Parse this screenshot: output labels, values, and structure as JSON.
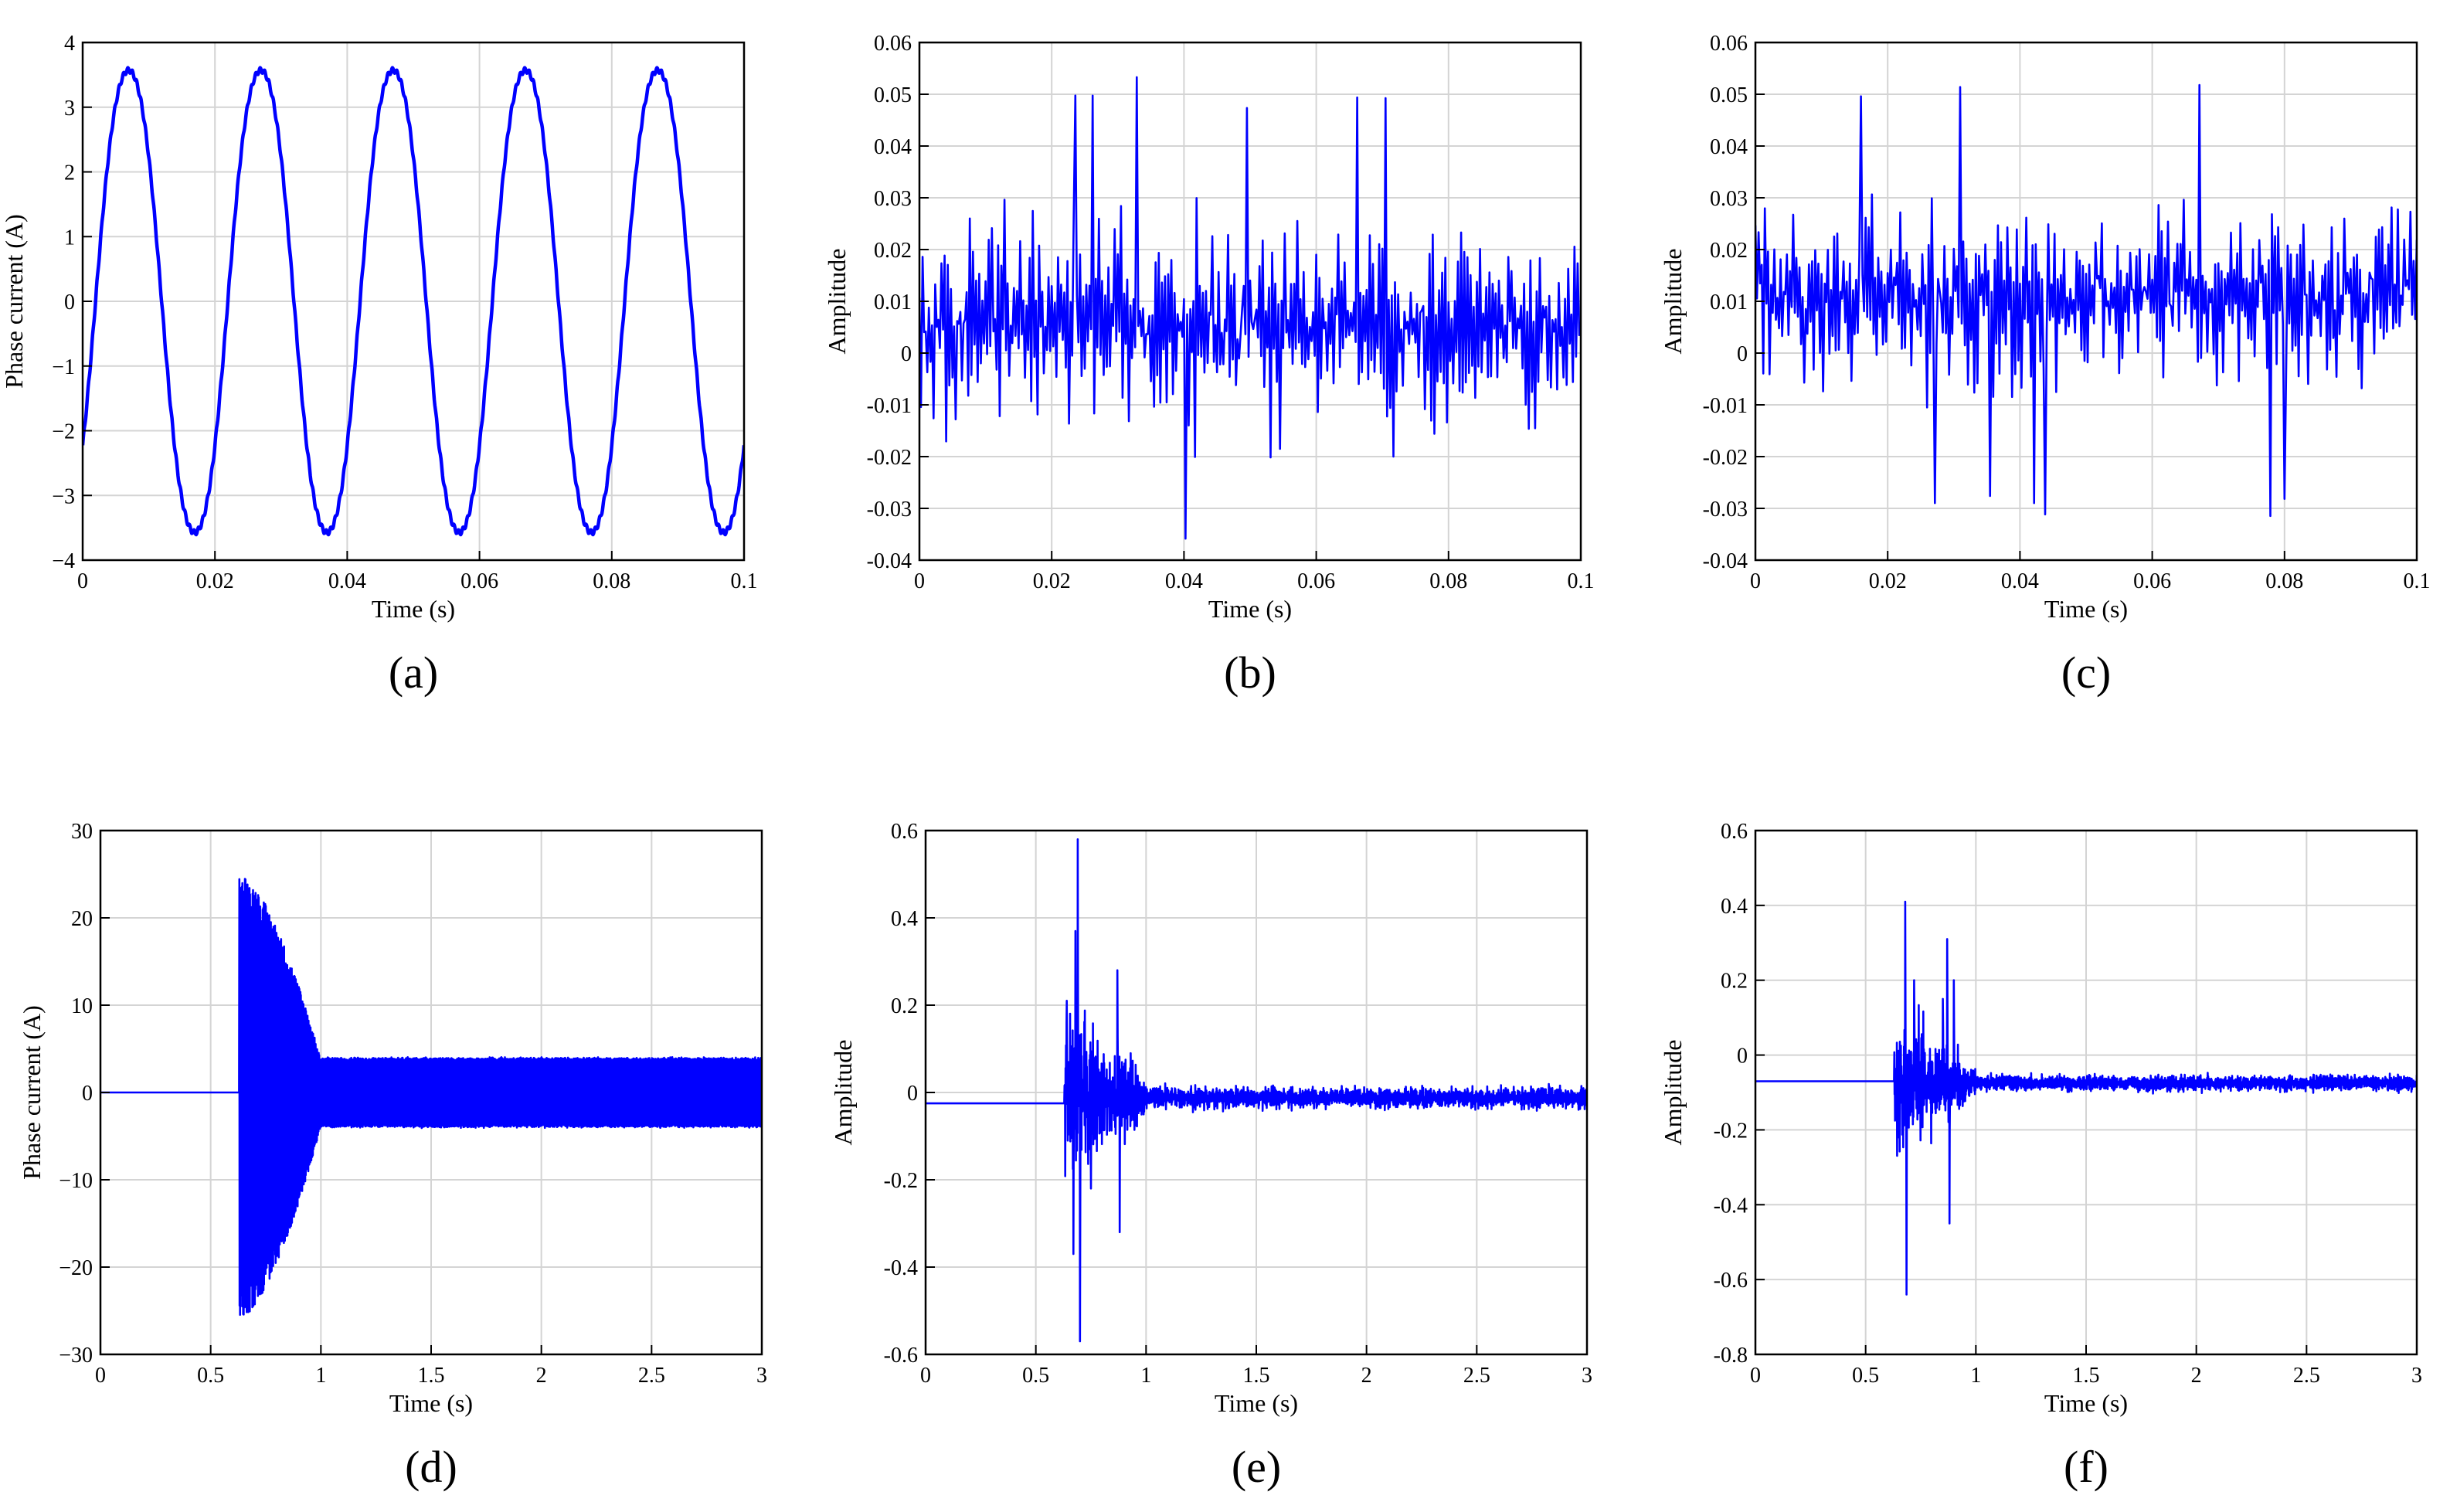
{
  "colors": {
    "line": "#0000ff",
    "grid": "#d4d4d4",
    "axis": "#000000"
  },
  "chart_data": [
    {
      "panel": "a",
      "caption": "(a)",
      "type": "line",
      "xlabel": "Time (s)",
      "ylabel": "Phase current (A)",
      "xlim": [
        0,
        0.1
      ],
      "ylim": [
        -4,
        4
      ],
      "xticks": [
        0,
        0.02,
        0.04,
        0.06,
        0.08,
        0.1
      ],
      "xtick_labels": [
        "0",
        "0.02",
        "0.04",
        "0.06",
        "0.08",
        "0.1"
      ],
      "yticks": [
        -4,
        -3,
        -2,
        -1,
        0,
        1,
        2,
        3,
        4
      ],
      "ytick_labels": [
        "−4",
        "−3",
        "−2",
        "−1",
        "0",
        "1",
        "2",
        "3",
        "4"
      ],
      "grid": true,
      "signal": {
        "kind": "sine",
        "amplitude": 3.8,
        "frequency_hz": 50,
        "phase_deg": -35,
        "harmonic": 0.12
      }
    },
    {
      "panel": "b",
      "caption": "(b)",
      "type": "line",
      "xlabel": "Time (s)",
      "ylabel": "Amplitude",
      "xlim": [
        0,
        0.1
      ],
      "ylim": [
        -0.04,
        0.06
      ],
      "xticks": [
        0,
        0.02,
        0.04,
        0.06,
        0.08,
        0.1
      ],
      "xtick_labels": [
        "0",
        "0.02",
        "0.04",
        "0.06",
        "0.08",
        "0.1"
      ],
      "yticks": [
        -0.04,
        -0.03,
        -0.02,
        -0.01,
        0,
        0.01,
        0.02,
        0.03,
        0.04,
        0.05,
        0.06
      ],
      "ytick_labels": [
        "-0.04",
        "-0.03",
        "-0.02",
        "-0.01",
        "0",
        "0.01",
        "0.02",
        "0.03",
        "0.04",
        "0.05",
        "0.06"
      ],
      "grid": true,
      "signal": {
        "kind": "noise",
        "points": 420,
        "mean": 0.005,
        "spread": 0.028,
        "min": -0.036,
        "max": 0.054
      }
    },
    {
      "panel": "c",
      "caption": "(c)",
      "type": "line",
      "xlabel": "Time (s)",
      "ylabel": "Amplitude",
      "xlim": [
        0,
        0.1
      ],
      "ylim": [
        -0.04,
        0.06
      ],
      "xticks": [
        0,
        0.02,
        0.04,
        0.06,
        0.08,
        0.1
      ],
      "xtick_labels": [
        "0",
        "0.02",
        "0.04",
        "0.06",
        "0.08",
        "0.1"
      ],
      "yticks": [
        -0.04,
        -0.03,
        -0.02,
        -0.01,
        0,
        0.01,
        0.02,
        0.03,
        0.04,
        0.05,
        0.06
      ],
      "ytick_labels": [
        "-0.04",
        "-0.03",
        "-0.02",
        "-0.01",
        "0",
        "0.01",
        "0.02",
        "0.03",
        "0.04",
        "0.05",
        "0.06"
      ],
      "grid": true,
      "signal": {
        "kind": "noise",
        "points": 420,
        "mean": 0.011,
        "spread": 0.024,
        "min": -0.032,
        "max": 0.057
      }
    },
    {
      "panel": "d",
      "caption": "(d)",
      "type": "line",
      "xlabel": "Time (s)",
      "ylabel": "Phase current (A)",
      "xlim": [
        0,
        3
      ],
      "ylim": [
        -30,
        30
      ],
      "xticks": [
        0,
        0.5,
        1,
        1.5,
        2,
        2.5,
        3
      ],
      "xtick_labels": [
        "0",
        "0.5",
        "1",
        "1.5",
        "2",
        "2.5",
        "3"
      ],
      "yticks": [
        -30,
        -20,
        -10,
        0,
        10,
        20,
        30
      ],
      "ytick_labels": [
        "−30",
        "−20",
        "−10",
        "0",
        "10",
        "20",
        "30"
      ],
      "grid": true,
      "signal": {
        "kind": "startup",
        "baseline": 0,
        "start": 0.63,
        "peak_top": 25,
        "peak_bottom": -26,
        "settle_time": 1.0,
        "steady": 3.8,
        "steady_noise": 0.3
      }
    },
    {
      "panel": "e",
      "caption": "(e)",
      "type": "line",
      "xlabel": "Time (s)",
      "ylabel": "Amplitude",
      "xlim": [
        0,
        3
      ],
      "ylim": [
        -0.6,
        0.6
      ],
      "xticks": [
        0,
        0.5,
        1,
        1.5,
        2,
        2.5,
        3
      ],
      "xtick_labels": [
        "0",
        "0.5",
        "1",
        "1.5",
        "2",
        "2.5",
        "3"
      ],
      "yticks": [
        -0.6,
        -0.4,
        -0.2,
        0,
        0.2,
        0.4,
        0.6
      ],
      "ytick_labels": [
        "-0.6",
        "-0.4",
        "-0.2",
        "0",
        "0.2",
        "0.4",
        "0.6"
      ],
      "grid": true,
      "signal": {
        "kind": "burst",
        "baseline": -0.025,
        "start": 0.63,
        "settle_time": 1.0,
        "steady_center": -0.012,
        "steady_spread": 0.035,
        "spikes": [
          [
            0.64,
            0.21
          ],
          [
            0.67,
            -0.37
          ],
          [
            0.68,
            0.37
          ],
          [
            0.69,
            0.58
          ],
          [
            0.7,
            -0.57
          ],
          [
            0.75,
            -0.22
          ],
          [
            0.87,
            0.28
          ],
          [
            0.88,
            -0.32
          ],
          [
            0.93,
            0.09
          ]
        ]
      }
    },
    {
      "panel": "f",
      "caption": "(f)",
      "type": "line",
      "xlabel": "Time (s)",
      "ylabel": "Amplitude",
      "xlim": [
        0,
        3
      ],
      "ylim": [
        -0.8,
        0.6
      ],
      "xticks": [
        0,
        0.5,
        1,
        1.5,
        2,
        2.5,
        3
      ],
      "xtick_labels": [
        "0",
        "0.5",
        "1",
        "1.5",
        "2",
        "2.5",
        "3"
      ],
      "yticks": [
        -0.8,
        -0.6,
        -0.4,
        -0.2,
        0,
        0.2,
        0.4,
        0.6
      ],
      "ytick_labels": [
        "-0.8",
        "-0.6",
        "-0.4",
        "-0.2",
        "0",
        "0.2",
        "0.4",
        "0.6"
      ],
      "grid": true,
      "signal": {
        "kind": "burst",
        "baseline": -0.07,
        "start": 0.63,
        "settle_time": 1.0,
        "steady_center": -0.075,
        "steady_spread": 0.03,
        "spikes": [
          [
            0.65,
            -0.22
          ],
          [
            0.68,
            0.41
          ],
          [
            0.685,
            -0.64
          ],
          [
            0.72,
            0.2
          ],
          [
            0.85,
            0.15
          ],
          [
            0.87,
            0.31
          ],
          [
            0.88,
            -0.45
          ],
          [
            0.9,
            0.2
          ]
        ]
      }
    }
  ]
}
